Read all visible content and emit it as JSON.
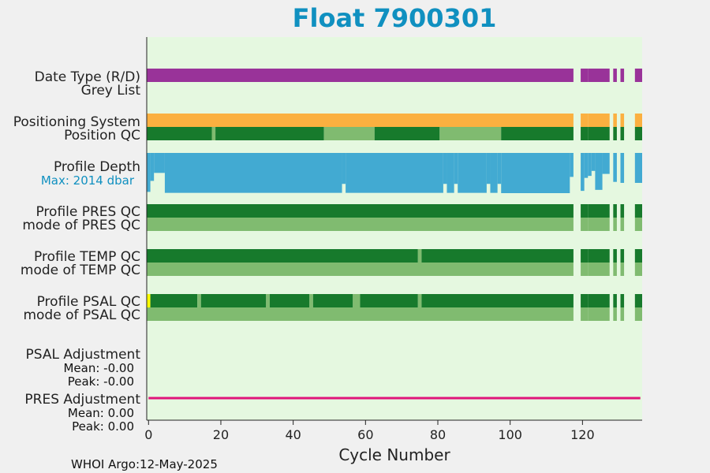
{
  "chart_data": {
    "type": "bar",
    "title": "Float 7900301",
    "xlabel": "Cycle Number",
    "xlim": [
      -0.5,
      136.5
    ],
    "x_ticks": [
      0,
      20,
      40,
      60,
      80,
      100,
      120
    ],
    "footer": "WHOI Argo:12-May-2025",
    "colors": {
      "background": "#f0f0f0",
      "plot_bg": "#e5f8e0",
      "title": "#1090c0",
      "delayed": "#993399",
      "gps": "#fbb040",
      "good": "#177a2c",
      "probably_good": "#80bb70",
      "bad": "#ffff00",
      "profile_depth": "#42aad2",
      "pres_adjustment": "#e0157a",
      "max_label": "#1090c0"
    },
    "profile_depth_max": 2014,
    "profile_depth_max_label": "Max: 2014 dbar",
    "present_cycle_ranges": [
      [
        0,
        117
      ],
      [
        120,
        121
      ],
      [
        122,
        127
      ],
      [
        129,
        129
      ],
      [
        131,
        131
      ],
      [
        135,
        136
      ]
    ],
    "rows": [
      {
        "label": "Date Type (R/D)",
        "segments": [
          {
            "from": 0,
            "to": 117,
            "state": "delayed"
          },
          {
            "from": 120,
            "to": 121,
            "state": "delayed"
          },
          {
            "from": 122,
            "to": 127,
            "state": "delayed"
          },
          {
            "from": 129,
            "to": 129,
            "state": "delayed"
          },
          {
            "from": 131,
            "to": 131,
            "state": "delayed"
          },
          {
            "from": 135,
            "to": 136,
            "state": "delayed"
          }
        ]
      },
      {
        "label": "Grey List",
        "segments": []
      },
      {
        "label": "Positioning System",
        "segments": [
          {
            "from": 0,
            "to": 117,
            "state": "gps"
          },
          {
            "from": 120,
            "to": 121,
            "state": "gps"
          },
          {
            "from": 122,
            "to": 127,
            "state": "gps"
          },
          {
            "from": 129,
            "to": 129,
            "state": "gps"
          },
          {
            "from": 131,
            "to": 131,
            "state": "gps"
          },
          {
            "from": 135,
            "to": 136,
            "state": "gps"
          }
        ]
      },
      {
        "label": "Position QC",
        "segments": [
          {
            "from": 0,
            "to": 17,
            "state": "good"
          },
          {
            "from": 18,
            "to": 18,
            "state": "probably_good"
          },
          {
            "from": 19,
            "to": 48,
            "state": "good"
          },
          {
            "from": 49,
            "to": 62,
            "state": "probably_good"
          },
          {
            "from": 63,
            "to": 80,
            "state": "good"
          },
          {
            "from": 81,
            "to": 97,
            "state": "probably_good"
          },
          {
            "from": 98,
            "to": 117,
            "state": "good"
          },
          {
            "from": 120,
            "to": 121,
            "state": "good"
          },
          {
            "from": 122,
            "to": 127,
            "state": "good"
          },
          {
            "from": 129,
            "to": 129,
            "state": "good"
          },
          {
            "from": 131,
            "to": 131,
            "state": "good"
          },
          {
            "from": 135,
            "to": 136,
            "state": "good"
          }
        ]
      },
      {
        "label": "Profile Depth",
        "segments": []
      },
      {
        "label": "Profile PRES QC",
        "segments": [
          {
            "from": 0,
            "to": 117,
            "state": "good"
          },
          {
            "from": 120,
            "to": 121,
            "state": "good"
          },
          {
            "from": 122,
            "to": 127,
            "state": "good"
          },
          {
            "from": 129,
            "to": 129,
            "state": "good"
          },
          {
            "from": 131,
            "to": 131,
            "state": "good"
          },
          {
            "from": 135,
            "to": 136,
            "state": "good"
          }
        ]
      },
      {
        "label": "mode of PRES QC",
        "segments": [
          {
            "from": 0,
            "to": 117,
            "state": "probably_good"
          },
          {
            "from": 120,
            "to": 121,
            "state": "probably_good"
          },
          {
            "from": 122,
            "to": 127,
            "state": "probably_good"
          },
          {
            "from": 129,
            "to": 129,
            "state": "probably_good"
          },
          {
            "from": 131,
            "to": 131,
            "state": "probably_good"
          },
          {
            "from": 135,
            "to": 136,
            "state": "probably_good"
          }
        ]
      },
      {
        "label": "Profile TEMP QC",
        "segments": [
          {
            "from": 0,
            "to": 74,
            "state": "good"
          },
          {
            "from": 75,
            "to": 75,
            "state": "probably_good"
          },
          {
            "from": 76,
            "to": 117,
            "state": "good"
          },
          {
            "from": 120,
            "to": 121,
            "state": "good"
          },
          {
            "from": 122,
            "to": 127,
            "state": "good"
          },
          {
            "from": 129,
            "to": 129,
            "state": "good"
          },
          {
            "from": 131,
            "to": 131,
            "state": "good"
          },
          {
            "from": 135,
            "to": 136,
            "state": "good"
          }
        ]
      },
      {
        "label": "mode of TEMP QC",
        "segments": [
          {
            "from": 0,
            "to": 117,
            "state": "probably_good"
          },
          {
            "from": 120,
            "to": 121,
            "state": "probably_good"
          },
          {
            "from": 122,
            "to": 127,
            "state": "probably_good"
          },
          {
            "from": 129,
            "to": 129,
            "state": "probably_good"
          },
          {
            "from": 131,
            "to": 131,
            "state": "probably_good"
          },
          {
            "from": 135,
            "to": 136,
            "state": "probably_good"
          }
        ]
      },
      {
        "label": "Profile PSAL QC",
        "segments": [
          {
            "from": 0,
            "to": 0,
            "state": "bad"
          },
          {
            "from": 1,
            "to": 13,
            "state": "good"
          },
          {
            "from": 14,
            "to": 14,
            "state": "probably_good"
          },
          {
            "from": 15,
            "to": 32,
            "state": "good"
          },
          {
            "from": 33,
            "to": 33,
            "state": "probably_good"
          },
          {
            "from": 34,
            "to": 44,
            "state": "good"
          },
          {
            "from": 45,
            "to": 45,
            "state": "probably_good"
          },
          {
            "from": 46,
            "to": 56,
            "state": "good"
          },
          {
            "from": 57,
            "to": 58,
            "state": "probably_good"
          },
          {
            "from": 59,
            "to": 74,
            "state": "good"
          },
          {
            "from": 75,
            "to": 75,
            "state": "probably_good"
          },
          {
            "from": 76,
            "to": 117,
            "state": "good"
          },
          {
            "from": 120,
            "to": 121,
            "state": "good"
          },
          {
            "from": 122,
            "to": 127,
            "state": "good"
          },
          {
            "from": 129,
            "to": 129,
            "state": "good"
          },
          {
            "from": 131,
            "to": 131,
            "state": "good"
          },
          {
            "from": 135,
            "to": 136,
            "state": "good"
          }
        ]
      },
      {
        "label": "mode of PSAL QC",
        "segments": [
          {
            "from": 0,
            "to": 117,
            "state": "probably_good"
          },
          {
            "from": 120,
            "to": 121,
            "state": "probably_good"
          },
          {
            "from": 122,
            "to": 127,
            "state": "probably_good"
          },
          {
            "from": 129,
            "to": 129,
            "state": "probably_good"
          },
          {
            "from": 131,
            "to": 131,
            "state": "probably_good"
          },
          {
            "from": 135,
            "to": 136,
            "state": "probably_good"
          }
        ]
      },
      {
        "label": "PSAL Adjustment",
        "segments": []
      },
      {
        "label": "PRES Adjustment",
        "segments": []
      }
    ],
    "profile_depth": [
      {
        "from": 0,
        "to": 0,
        "value": 1950
      },
      {
        "from": 1,
        "to": 1,
        "value": 1400
      },
      {
        "from": 2,
        "to": 4,
        "value": 1000
      },
      {
        "from": 5,
        "to": 53,
        "value": 2000
      },
      {
        "from": 54,
        "to": 54,
        "value": 1550
      },
      {
        "from": 55,
        "to": 81,
        "value": 2000
      },
      {
        "from": 82,
        "to": 82,
        "value": 1550
      },
      {
        "from": 83,
        "to": 84,
        "value": 2000
      },
      {
        "from": 85,
        "to": 85,
        "value": 1550
      },
      {
        "from": 86,
        "to": 93,
        "value": 2000
      },
      {
        "from": 94,
        "to": 94,
        "value": 1550
      },
      {
        "from": 95,
        "to": 96,
        "value": 2000
      },
      {
        "from": 97,
        "to": 97,
        "value": 1550
      },
      {
        "from": 98,
        "to": 116,
        "value": 2014
      },
      {
        "from": 117,
        "to": 117,
        "value": 1200
      },
      {
        "from": 120,
        "to": 120,
        "value": 1900
      },
      {
        "from": 121,
        "to": 121,
        "value": 1250
      },
      {
        "from": 122,
        "to": 122,
        "value": 1150
      },
      {
        "from": 123,
        "to": 123,
        "value": 900
      },
      {
        "from": 124,
        "to": 125,
        "value": 1850
      },
      {
        "from": 126,
        "to": 127,
        "value": 1050
      },
      {
        "from": 129,
        "to": 129,
        "value": 1450
      },
      {
        "from": 131,
        "to": 131,
        "value": 1500
      },
      {
        "from": 135,
        "to": 136,
        "value": 1500
      }
    ],
    "psal_adjustment": {
      "label": "PSAL Adjustment",
      "mean_label": "Mean: -0.00",
      "peak_label": "Peak: -0.00"
    },
    "pres_adjustment": {
      "label": "PRES Adjustment",
      "mean_label": "Mean: 0.00",
      "peak_label": "Peak: 0.00",
      "from": 0,
      "to": 136
    }
  }
}
